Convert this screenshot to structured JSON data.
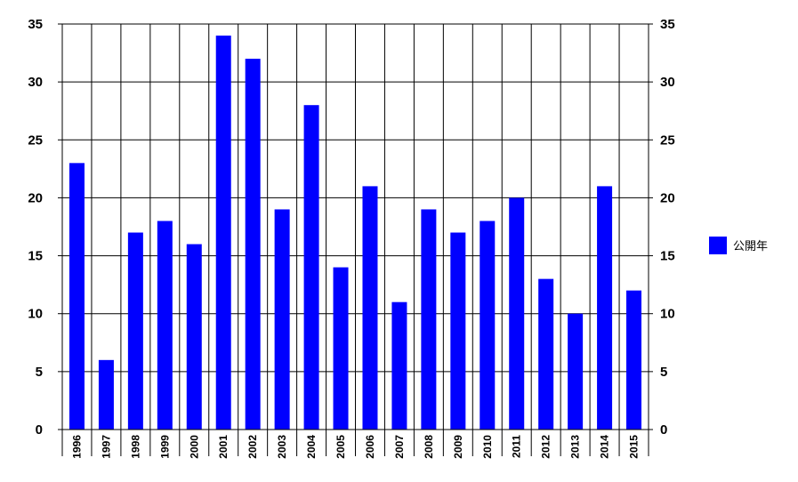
{
  "chart_data": {
    "type": "bar",
    "categories": [
      "1996",
      "1997",
      "1998",
      "1999",
      "2000",
      "2001",
      "2002",
      "2003",
      "2004",
      "2005",
      "2006",
      "2007",
      "2008",
      "2009",
      "2010",
      "2011",
      "2012",
      "2013",
      "2014",
      "2015"
    ],
    "series": [
      {
        "name": "公開年",
        "values": [
          23,
          6,
          17,
          18,
          16,
          34,
          32,
          19,
          28,
          14,
          21,
          11,
          19,
          17,
          18,
          20,
          13,
          10,
          21,
          12
        ],
        "color": "#0000ff"
      }
    ],
    "ylim": [
      0,
      35
    ],
    "yticks": [
      0,
      5,
      10,
      15,
      20,
      25,
      30,
      35
    ],
    "y_axis_both_sides": true,
    "grid": true,
    "legend_position": "right"
  }
}
